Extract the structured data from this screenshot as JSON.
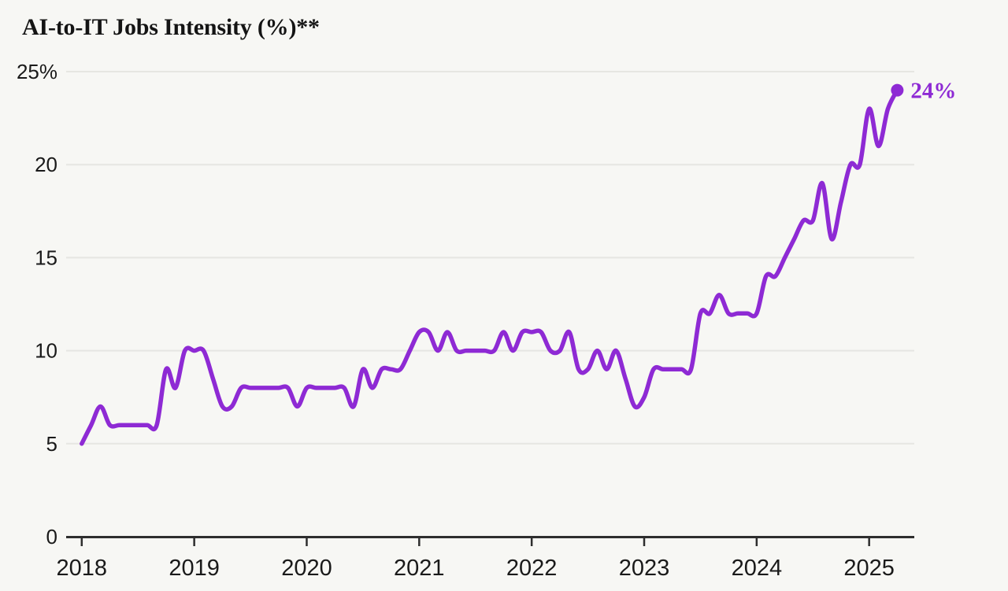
{
  "title": "AI-to-IT Jobs Intensity (%)**",
  "colors": {
    "background": "#f7f7f4",
    "line": "#8e2ad4",
    "grid": "#e6e6e2",
    "axis": "#2e2e2e",
    "text": "#1a1a1a"
  },
  "end_point": {
    "label": "24%",
    "value": 24
  },
  "chart_data": {
    "type": "line",
    "title": "AI-to-IT Jobs Intensity (%)**",
    "x_frequency": "monthly",
    "x_start": "2018-01",
    "x_end": "2025-04",
    "x_tick_labels": [
      "2018",
      "2019",
      "2020",
      "2021",
      "2022",
      "2023",
      "2024",
      "2025"
    ],
    "ylim": [
      0,
      25
    ],
    "y_ticks": [
      {
        "value": 25,
        "label": "25%"
      },
      {
        "value": 20,
        "label": "20"
      },
      {
        "value": 15,
        "label": "15"
      },
      {
        "value": 10,
        "label": "10"
      },
      {
        "value": 5,
        "label": "5"
      },
      {
        "value": 0,
        "label": "0"
      }
    ],
    "grid": "horizontal-only",
    "legend": "none",
    "line_style": "smooth-spline",
    "end_point_label": "24%",
    "series": [
      {
        "name": "AI-to-IT Jobs Intensity (%)",
        "values_by_year": {
          "2018": [
            5,
            6,
            7,
            6,
            6,
            6,
            6,
            6,
            6,
            9,
            8,
            10
          ],
          "2019": [
            10,
            10,
            8.5,
            7,
            7,
            8,
            8,
            8,
            8,
            8,
            8,
            7
          ],
          "2020": [
            8,
            8,
            8,
            8,
            8,
            7,
            9,
            8,
            9,
            9,
            9,
            10
          ],
          "2021": [
            11,
            11,
            10,
            11,
            10,
            10,
            10,
            10,
            10,
            11,
            10,
            11
          ],
          "2022": [
            11,
            11,
            10,
            10,
            11,
            9,
            9,
            10,
            9,
            10,
            8.5,
            7
          ],
          "2023": [
            7.5,
            9,
            9,
            9,
            9,
            9,
            12,
            12,
            13,
            12,
            12,
            12
          ],
          "2024": [
            12,
            14,
            14,
            15,
            16,
            17,
            17,
            19,
            16,
            18,
            20,
            20
          ],
          "2025": [
            23,
            21,
            23,
            24
          ]
        }
      }
    ]
  }
}
